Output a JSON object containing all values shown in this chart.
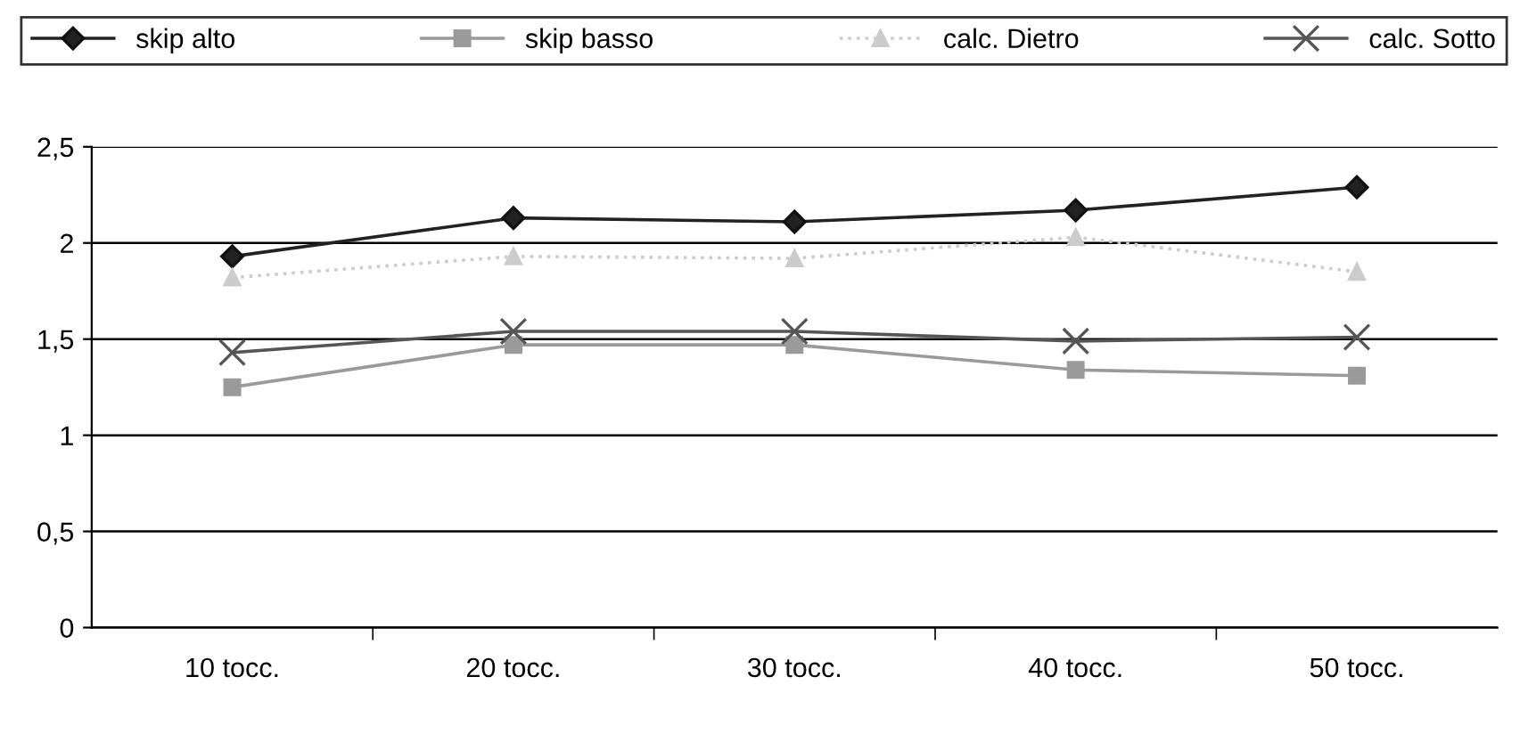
{
  "chart_data": {
    "type": "line",
    "categories": [
      "10 tocc.",
      "20 tocc.",
      "30 tocc.",
      "40 tocc.",
      "50 tocc."
    ],
    "series": [
      {
        "name": "skip alto",
        "color": "#222222",
        "marker": "diamond",
        "line_style": "solid",
        "values": [
          1.93,
          2.13,
          2.11,
          2.17,
          2.29
        ]
      },
      {
        "name": "skip basso",
        "color": "#9a9a9a",
        "marker": "square",
        "line_style": "solid",
        "values": [
          1.25,
          1.47,
          1.47,
          1.34,
          1.31
        ]
      },
      {
        "name": "calc. Dietro",
        "color": "#cccccc",
        "marker": "triangle",
        "line_style": "dotted",
        "values": [
          1.82,
          1.93,
          1.92,
          2.03,
          1.85
        ]
      },
      {
        "name": "calc. Sotto",
        "color": "#555555",
        "marker": "cross",
        "line_style": "solid",
        "values": [
          1.43,
          1.54,
          1.54,
          1.49,
          1.51
        ]
      }
    ],
    "ylim": [
      0,
      2.5
    ],
    "yticks": [
      {
        "value": 0,
        "label": "0"
      },
      {
        "value": 0.5,
        "label": "0,5"
      },
      {
        "value": 1,
        "label": "1"
      },
      {
        "value": 1.5,
        "label": "1,5"
      },
      {
        "value": 2,
        "label": "2"
      },
      {
        "value": 2.5,
        "label": "2,5"
      }
    ],
    "grid": "y",
    "legend": "top"
  }
}
